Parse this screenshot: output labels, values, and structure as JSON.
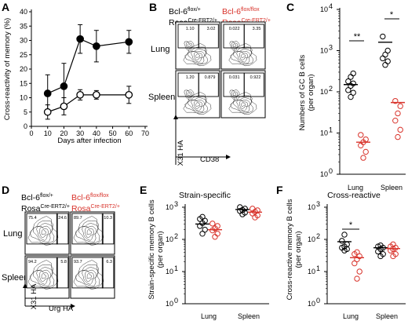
{
  "colors": {
    "wt": "#000000",
    "ko": "#d8322a",
    "gate": "#000000"
  },
  "panels": {
    "A": {
      "label": "A",
      "ylabel": "Cross-reactivity of memory (%)",
      "xlabel": "Days after infection",
      "yticks": [
        "0",
        "5",
        "10",
        "15",
        "20",
        "25",
        "30",
        "35",
        "40"
      ],
      "xticks": [
        "0",
        "10",
        "20",
        "30",
        "40",
        "50",
        "60",
        "70"
      ]
    },
    "B": {
      "label": "B",
      "col1": {
        "line1": "Bcl-6",
        "sup1": "flox/+",
        "line2": "Rosa",
        "sup2": "Cre-ERT2/+"
      },
      "col2": {
        "line1": "Bcl-6",
        "sup1": "flox/flox",
        "line2": "Rosa",
        "sup2": "Cre-ERT2/+"
      },
      "row1": "Lung",
      "row2": "Spleen",
      "yaxis": "X31 HA",
      "xaxis": "CD38",
      "gates": [
        {
          "left": "1.10",
          "right": "3.02"
        },
        {
          "left": "0.022",
          "right": "3.35"
        },
        {
          "left": "1.20",
          "right": "0.879"
        },
        {
          "left": "0.031",
          "right": "0.922"
        }
      ]
    },
    "C": {
      "label": "C",
      "ylabel": "Numbers of GC B cells",
      "ylabel2": "(per organ)",
      "yticks": [
        "10",
        "10",
        "10",
        "10",
        "10"
      ],
      "ysups": [
        "0",
        "1",
        "2",
        "3",
        "4"
      ],
      "categories": [
        "Lung",
        "Spleen"
      ],
      "sig": [
        "**",
        "*"
      ]
    },
    "D": {
      "label": "D",
      "col1": {
        "line1": "Bcl-6",
        "sup1": "flox/+",
        "line2": "Rosa",
        "sup2": "Cre-ERT2/+"
      },
      "col2": {
        "line1": "Bcl-6",
        "sup1": "flox/flox",
        "line2": "Rosa",
        "sup2": "Cre-ERT2/+"
      },
      "row1": "Lung",
      "row2": "Spleen",
      "yaxis": "X31 HA",
      "xaxis": "Urg HA",
      "gates": [
        {
          "left": "75.4",
          "right": "24.6"
        },
        {
          "left": "89.7",
          "right": "10.3"
        },
        {
          "left": "94.2",
          "right": "5.8"
        },
        {
          "left": "93.7",
          "right": "6.3"
        }
      ]
    },
    "E": {
      "label": "E",
      "title": "Strain-specific",
      "ylabel": "Strain-specific memory B cells",
      "ylabel2": "(per organ)",
      "yticks": [
        "10",
        "10",
        "10",
        "10"
      ],
      "ysups": [
        "0",
        "1",
        "2",
        "3"
      ],
      "categories": [
        "Lung",
        "Spleen"
      ]
    },
    "F": {
      "label": "F",
      "title": "Cross-reactive",
      "ylabel": "Cross-reactive memory B cells",
      "ylabel2": "(per organ)",
      "yticks": [
        "10",
        "10",
        "10",
        "10"
      ],
      "ysups": [
        "0",
        "1",
        "2",
        "3"
      ],
      "categories": [
        "Lung",
        "Spleen"
      ],
      "sig": [
        "*"
      ]
    }
  },
  "chart_data": [
    {
      "type": "line",
      "panel": "A",
      "xlabel": "Days after infection",
      "ylabel": "Cross-reactivity of memory (%)",
      "xlim": [
        0,
        70
      ],
      "ylim": [
        0,
        40
      ],
      "series": [
        {
          "color": "#000000",
          "marker": "filled-circle",
          "x": [
            10,
            20,
            30,
            40,
            60
          ],
          "y": [
            11.5,
            14,
            30.5,
            28,
            29.5
          ],
          "err": [
            6.5,
            8,
            5,
            5.5,
            4
          ]
        },
        {
          "color": "#000000",
          "marker": "open-circle",
          "x": [
            10,
            20,
            30,
            40,
            60
          ],
          "y": [
            5,
            7,
            11,
            11,
            11
          ],
          "err": [
            2.5,
            3,
            1.8,
            1.5,
            3
          ]
        }
      ]
    },
    {
      "type": "scatter",
      "panel": "C",
      "categories": [
        "Lung",
        "Spleen"
      ],
      "scale": "log",
      "ylim": [
        1,
        10000
      ],
      "ylabel": "Numbers of GC B cells",
      "series": [
        {
          "color": "#000000",
          "marker": "open-circle",
          "points": [
            [
              0,
              75
            ],
            [
              0,
              95
            ],
            [
              0,
              110
            ],
            [
              0,
              140
            ],
            [
              0,
              160
            ],
            [
              0,
              180
            ],
            [
              0,
              230
            ],
            [
              0,
              280
            ],
            [
              1,
              450
            ],
            [
              1,
              550
            ],
            [
              1,
              650
            ],
            [
              1,
              800
            ],
            [
              1,
              1000
            ],
            [
              1,
              2200
            ]
          ],
          "means": [
            150,
            1600
          ]
        },
        {
          "color": "#d8322a",
          "marker": "open-circle",
          "points": [
            [
              0,
              2.5
            ],
            [
              0,
              3.5
            ],
            [
              0,
              5
            ],
            [
              0,
              6
            ],
            [
              0,
              7
            ],
            [
              0,
              9
            ],
            [
              1,
              8
            ],
            [
              1,
              12
            ],
            [
              1,
              20
            ],
            [
              1,
              30
            ],
            [
              1,
              45
            ],
            [
              1,
              60
            ]
          ],
          "means": [
            6,
            55
          ]
        }
      ]
    },
    {
      "type": "scatter",
      "panel": "E",
      "categories": [
        "Lung",
        "Spleen"
      ],
      "scale": "log",
      "ylim": [
        1,
        1000
      ],
      "ylabel": "Strain-specific memory B cells",
      "series": [
        {
          "color": "#000000",
          "marker": "open-circle",
          "points": [
            [
              0,
              150
            ],
            [
              0,
              200
            ],
            [
              0,
              260
            ],
            [
              0,
              320
            ],
            [
              0,
              380
            ],
            [
              0,
              430
            ],
            [
              0,
              500
            ],
            [
              1,
              600
            ],
            [
              1,
              680
            ],
            [
              1,
              760
            ],
            [
              1,
              820
            ],
            [
              1,
              900
            ],
            [
              1,
              1000
            ]
          ],
          "means": [
            300,
            850
          ]
        },
        {
          "color": "#d8322a",
          "marker": "open-circle",
          "points": [
            [
              0,
              120
            ],
            [
              0,
              150
            ],
            [
              0,
              190
            ],
            [
              0,
              220
            ],
            [
              0,
              260
            ],
            [
              0,
              310
            ],
            [
              1,
              480
            ],
            [
              1,
              560
            ],
            [
              1,
              640
            ],
            [
              1,
              720
            ],
            [
              1,
              800
            ],
            [
              1,
              900
            ]
          ],
          "means": [
            200,
            700
          ]
        }
      ]
    },
    {
      "type": "scatter",
      "panel": "F",
      "categories": [
        "Lung",
        "Spleen"
      ],
      "scale": "log",
      "ylim": [
        1,
        1000
      ],
      "ylabel": "Cross-reactive memory B cells",
      "series": [
        {
          "color": "#000000",
          "marker": "open-circle",
          "points": [
            [
              0,
              45
            ],
            [
              0,
              50
            ],
            [
              0,
              55
            ],
            [
              0,
              60
            ],
            [
              0,
              70
            ],
            [
              0,
              90
            ],
            [
              0,
              140
            ],
            [
              1,
              30
            ],
            [
              1,
              35
            ],
            [
              1,
              42
            ],
            [
              1,
              50
            ],
            [
              1,
              55
            ],
            [
              1,
              60
            ],
            [
              1,
              65
            ]
          ],
          "means": [
            85,
            55
          ]
        },
        {
          "color": "#d8322a",
          "marker": "open-circle",
          "points": [
            [
              0,
              6
            ],
            [
              0,
              10
            ],
            [
              0,
              18
            ],
            [
              0,
              24
            ],
            [
              0,
              30
            ],
            [
              0,
              35
            ],
            [
              0,
              40
            ],
            [
              1,
              30
            ],
            [
              1,
              35
            ],
            [
              1,
              45
            ],
            [
              1,
              50
            ],
            [
              1,
              55
            ],
            [
              1,
              60
            ],
            [
              1,
              70
            ]
          ],
          "means": [
            27,
            52
          ]
        }
      ]
    }
  ]
}
